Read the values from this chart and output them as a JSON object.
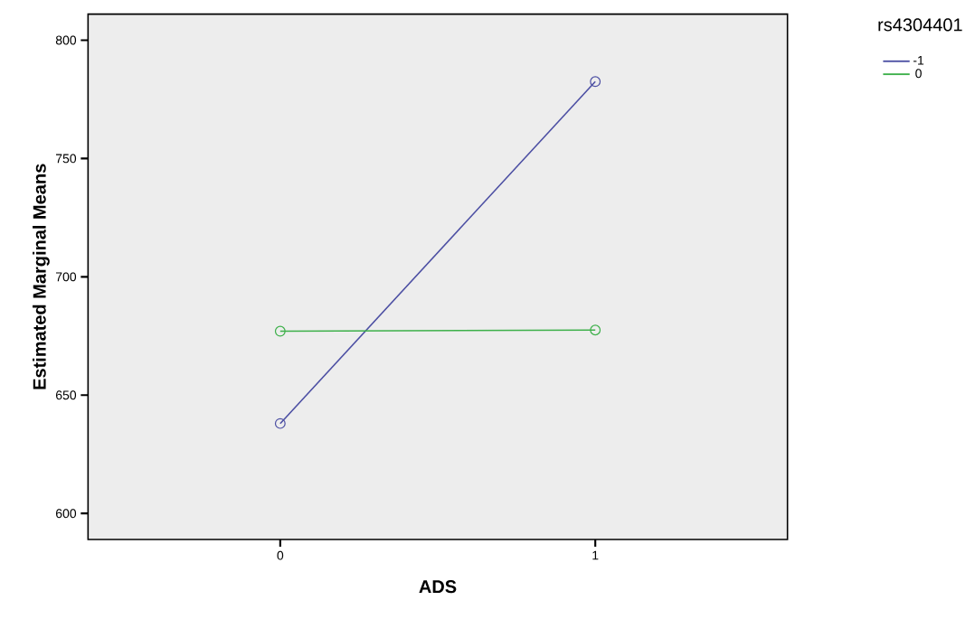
{
  "chart_data": {
    "type": "line",
    "xlabel": "ADS",
    "ylabel": "Estimated Marginal Means",
    "legend_title": "rs4304401",
    "categories": [
      "0",
      "1"
    ],
    "series": [
      {
        "name": "-1",
        "color": "#4c4fa3",
        "values": [
          638,
          782.5
        ]
      },
      {
        "name": "0",
        "color": "#3db04a",
        "values": [
          677,
          677.5
        ]
      }
    ],
    "ylim": [
      589,
      811
    ],
    "yticks": [
      600,
      650,
      700,
      750,
      800
    ],
    "legend": "top right",
    "marker": "circle",
    "line_style": "solid",
    "grid": false
  }
}
